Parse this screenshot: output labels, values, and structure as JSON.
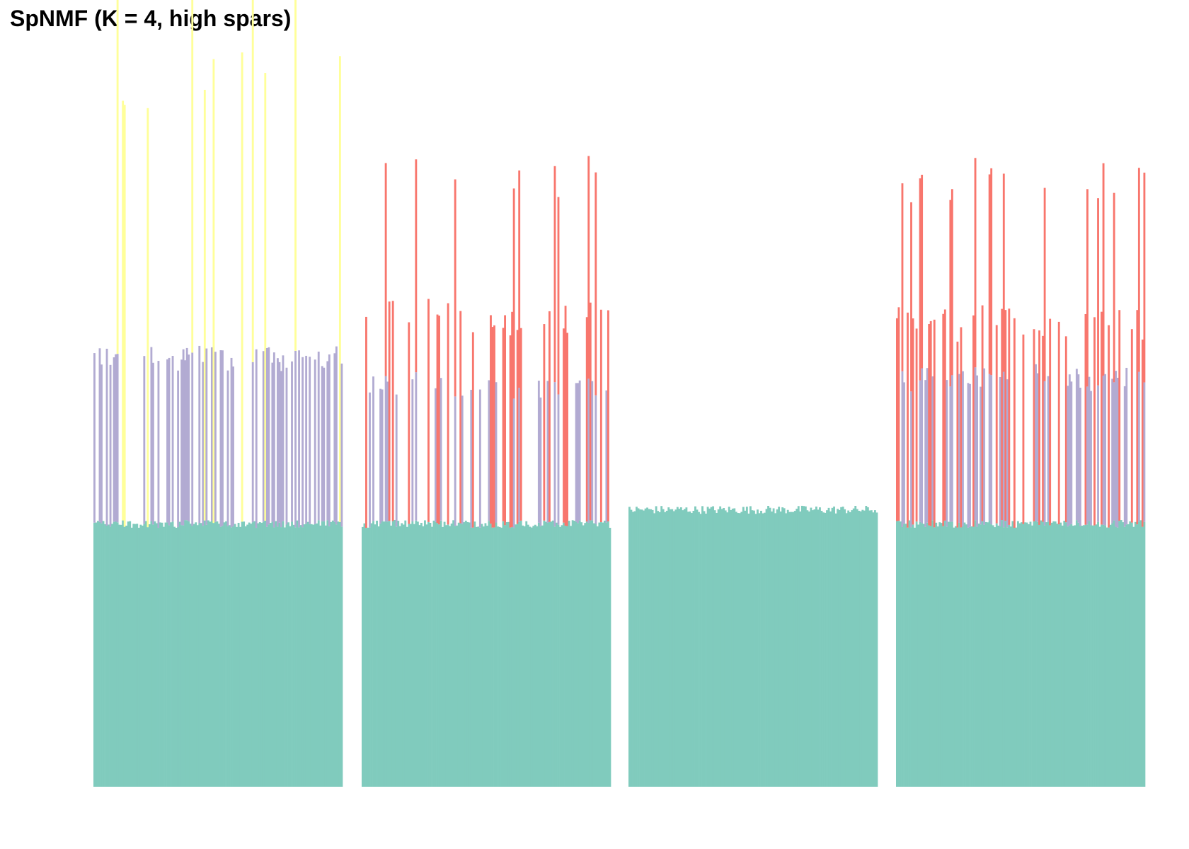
{
  "chart_data": {
    "type": "bar",
    "stacked": true,
    "title": "SpNMF (K = 4, high spars)",
    "xlabel": "",
    "ylabel": "",
    "axes_visible": false,
    "grid": false,
    "legend": "none",
    "ylim": [
      0,
      1.0
    ],
    "colors": {
      "teal": "#80cbbd",
      "lavender": "#b2abd2",
      "yellow": "#ffff99",
      "red": "#f8766d"
    },
    "groups": [
      {
        "samples": 140,
        "baseline": 0.37,
        "components": [
          {
            "color": "teal",
            "value": 0.37
          },
          {
            "color": "lavender",
            "value": 0.24,
            "frequency": 0.4
          },
          {
            "color": "yellow",
            "value": 0.63,
            "frequency": 0.1
          }
        ]
      },
      {
        "samples": 140,
        "baseline": 0.37,
        "components": [
          {
            "color": "teal",
            "value": 0.37
          },
          {
            "color": "lavender",
            "value": 0.2,
            "frequency": 0.25
          },
          {
            "color": "red",
            "value": 0.3,
            "frequency": 0.25
          }
        ]
      },
      {
        "samples": 140,
        "baseline": 0.39,
        "components": [
          {
            "color": "teal",
            "value": 0.39
          }
        ]
      },
      {
        "samples": 140,
        "baseline": 0.37,
        "components": [
          {
            "color": "teal",
            "value": 0.37
          },
          {
            "color": "lavender",
            "value": 0.21,
            "frequency": 0.3
          },
          {
            "color": "red",
            "value": 0.29,
            "frequency": 0.3
          }
        ]
      }
    ]
  }
}
